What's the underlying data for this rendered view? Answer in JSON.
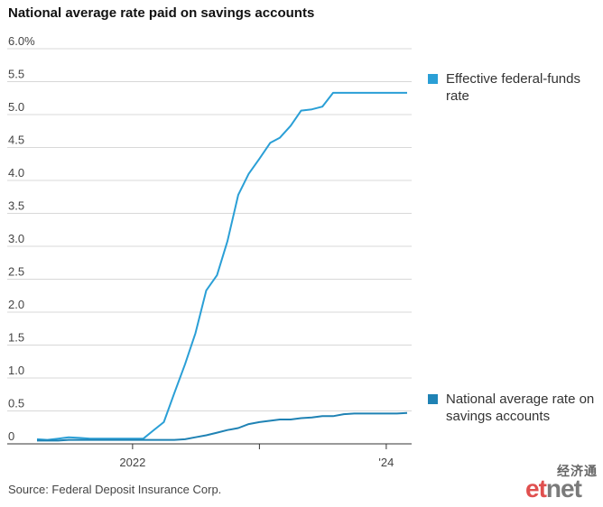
{
  "title": "National average rate paid on savings accounts",
  "source": "Source: Federal Deposit Insurance Corp.",
  "logo": {
    "chinese": "经济通",
    "brand_red": "et",
    "brand_gray": "net"
  },
  "colors": {
    "fedfunds": "#2a9fd6",
    "savings": "#1f82b4",
    "grid": "#d8d8d8",
    "axis": "#333333"
  },
  "chart_data": {
    "type": "line",
    "ylim": [
      0,
      6.0
    ],
    "yticks": [
      "6.0%",
      "5.5",
      "5.0",
      "4.5",
      "4.0",
      "3.5",
      "3.0",
      "2.5",
      "2.0",
      "1.5",
      "1.0",
      "0.5",
      "0"
    ],
    "ytick_values": [
      6.0,
      5.5,
      5.0,
      4.5,
      4.0,
      3.5,
      3.0,
      2.5,
      2.0,
      1.5,
      1.0,
      0.5,
      0
    ],
    "xlim": [
      "2021-04-01",
      "2024-03-01"
    ],
    "xticks": [
      {
        "label": "2022",
        "date": "2022-01-01"
      },
      {
        "label": "",
        "date": "2023-01-01"
      },
      {
        "label": "'24",
        "date": "2024-01-01"
      }
    ],
    "series": [
      {
        "name": "Effective federal-funds rate",
        "values": [
          [
            "2021-04-01",
            0.07
          ],
          [
            "2021-05-01",
            0.06
          ],
          [
            "2021-06-01",
            0.08
          ],
          [
            "2021-07-01",
            0.1
          ],
          [
            "2021-08-01",
            0.09
          ],
          [
            "2021-09-01",
            0.08
          ],
          [
            "2021-10-01",
            0.08
          ],
          [
            "2021-11-01",
            0.08
          ],
          [
            "2021-12-01",
            0.08
          ],
          [
            "2022-01-01",
            0.08
          ],
          [
            "2022-02-01",
            0.08
          ],
          [
            "2022-03-01",
            0.2
          ],
          [
            "2022-04-01",
            0.33
          ],
          [
            "2022-05-01",
            0.77
          ],
          [
            "2022-06-01",
            1.21
          ],
          [
            "2022-07-01",
            1.68
          ],
          [
            "2022-08-01",
            2.33
          ],
          [
            "2022-09-01",
            2.56
          ],
          [
            "2022-10-01",
            3.08
          ],
          [
            "2022-11-01",
            3.78
          ],
          [
            "2022-12-01",
            4.1
          ],
          [
            "2023-01-01",
            4.33
          ],
          [
            "2023-02-01",
            4.57
          ],
          [
            "2023-03-01",
            4.65
          ],
          [
            "2023-04-01",
            4.83
          ],
          [
            "2023-05-01",
            5.06
          ],
          [
            "2023-06-01",
            5.08
          ],
          [
            "2023-07-01",
            5.12
          ],
          [
            "2023-08-01",
            5.33
          ],
          [
            "2023-09-01",
            5.33
          ],
          [
            "2023-10-01",
            5.33
          ],
          [
            "2023-11-01",
            5.33
          ],
          [
            "2023-12-01",
            5.33
          ],
          [
            "2024-01-01",
            5.33
          ],
          [
            "2024-02-01",
            5.33
          ],
          [
            "2024-03-01",
            5.33
          ]
        ]
      },
      {
        "name": "National average rate on savings accounts",
        "values": [
          [
            "2021-04-01",
            0.05
          ],
          [
            "2021-05-01",
            0.05
          ],
          [
            "2021-06-01",
            0.05
          ],
          [
            "2021-07-01",
            0.06
          ],
          [
            "2021-08-01",
            0.06
          ],
          [
            "2021-09-01",
            0.06
          ],
          [
            "2021-10-01",
            0.06
          ],
          [
            "2021-11-01",
            0.06
          ],
          [
            "2021-12-01",
            0.06
          ],
          [
            "2022-01-01",
            0.06
          ],
          [
            "2022-02-01",
            0.06
          ],
          [
            "2022-03-01",
            0.06
          ],
          [
            "2022-04-01",
            0.06
          ],
          [
            "2022-05-01",
            0.06
          ],
          [
            "2022-06-01",
            0.07
          ],
          [
            "2022-07-01",
            0.1
          ],
          [
            "2022-08-01",
            0.13
          ],
          [
            "2022-09-01",
            0.17
          ],
          [
            "2022-10-01",
            0.21
          ],
          [
            "2022-11-01",
            0.24
          ],
          [
            "2022-12-01",
            0.3
          ],
          [
            "2023-01-01",
            0.33
          ],
          [
            "2023-02-01",
            0.35
          ],
          [
            "2023-03-01",
            0.37
          ],
          [
            "2023-04-01",
            0.37
          ],
          [
            "2023-05-01",
            0.39
          ],
          [
            "2023-06-01",
            0.4
          ],
          [
            "2023-07-01",
            0.42
          ],
          [
            "2023-08-01",
            0.42
          ],
          [
            "2023-09-01",
            0.45
          ],
          [
            "2023-10-01",
            0.46
          ],
          [
            "2023-11-01",
            0.46
          ],
          [
            "2023-12-01",
            0.46
          ],
          [
            "2024-01-01",
            0.46
          ],
          [
            "2024-02-01",
            0.46
          ],
          [
            "2024-03-01",
            0.47
          ]
        ]
      }
    ],
    "grid": true,
    "legend": "right"
  }
}
